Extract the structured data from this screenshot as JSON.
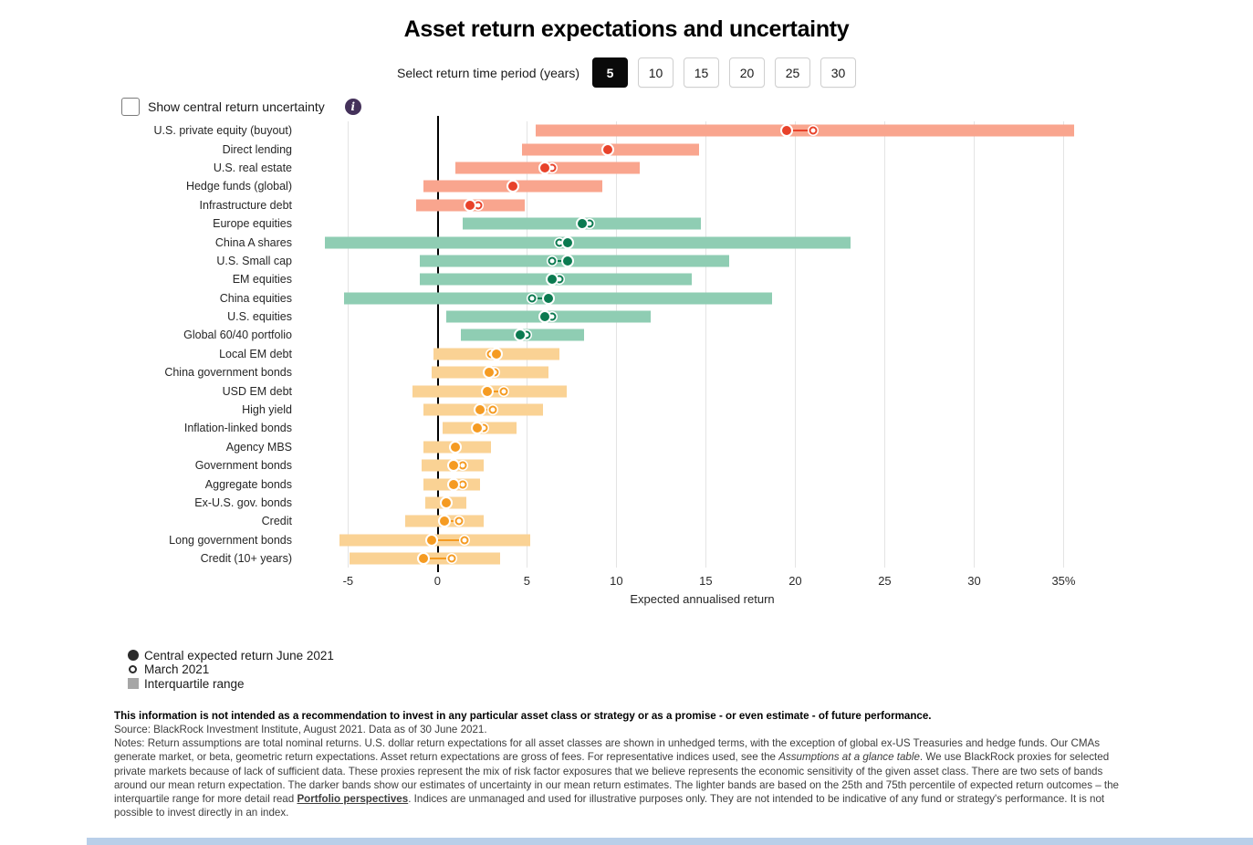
{
  "title": "Asset return expectations and uncertainty",
  "controls": {
    "time_period_label": "Select return time period (years)",
    "time_periods": [
      "5",
      "10",
      "15",
      "20",
      "25",
      "30"
    ],
    "selected_period": "5",
    "uncertainty_checkbox_label": "Show central return uncertainty",
    "uncertainty_checkbox_checked": false,
    "info_icon_color": "#44315a"
  },
  "legend": {
    "items": [
      {
        "marker": "filled-circle",
        "label": "Central expected return June 2021"
      },
      {
        "marker": "open-circle",
        "label": "March 2021"
      },
      {
        "marker": "square",
        "label": "Interquartile range"
      }
    ]
  },
  "chart_data": {
    "type": "bar",
    "orientation": "horizontal",
    "title": "Asset return expectations and uncertainty",
    "xlabel": "Expected annualised return",
    "xlim": [
      -6.6,
      36.2
    ],
    "xticks": [
      -5,
      0,
      5,
      10,
      15,
      20,
      25,
      30,
      35
    ],
    "xtick_labels": [
      "-5",
      "0",
      "5",
      "10",
      "15",
      "20",
      "25",
      "30",
      "35%"
    ],
    "grid": true,
    "legend_position": "bottom-left",
    "group_colors": {
      "alternatives": {
        "band": "#F9A58E",
        "dot": "#E8422A"
      },
      "equities": {
        "band": "#8FCDB3",
        "dot": "#0B7A50"
      },
      "fixed_income": {
        "band": "#FAD294",
        "dot": "#F59B22"
      }
    },
    "series_note": "iqr = interquartile range [25th,75th]; june = central expected return June 2021; march = March 2021 (null when hidden behind June dot)",
    "rows": [
      {
        "label": "U.S. private equity (buyout)",
        "group": "alternatives",
        "iqr": [
          5.5,
          35.6
        ],
        "june": 19.5,
        "march": 21.0
      },
      {
        "label": "Direct lending",
        "group": "alternatives",
        "iqr": [
          4.7,
          14.6
        ],
        "june": 9.5,
        "march": null
      },
      {
        "label": "U.S. real estate",
        "group": "alternatives",
        "iqr": [
          1.0,
          11.3
        ],
        "june": 6.0,
        "march": 6.4
      },
      {
        "label": "Hedge funds (global)",
        "group": "alternatives",
        "iqr": [
          -0.8,
          9.2
        ],
        "june": 4.2,
        "march": null
      },
      {
        "label": "Infrastructure debt",
        "group": "alternatives",
        "iqr": [
          -1.2,
          4.9
        ],
        "june": 1.8,
        "march": 2.3
      },
      {
        "label": "Europe equities",
        "group": "equities",
        "iqr": [
          1.4,
          14.7
        ],
        "june": 8.1,
        "march": 8.5
      },
      {
        "label": "China A shares",
        "group": "equities",
        "iqr": [
          -6.3,
          23.1
        ],
        "june": 7.3,
        "march": 6.8
      },
      {
        "label": "U.S. Small cap",
        "group": "equities",
        "iqr": [
          -1.0,
          16.3
        ],
        "june": 7.3,
        "march": 6.4
      },
      {
        "label": "EM equities",
        "group": "equities",
        "iqr": [
          -1.0,
          14.2
        ],
        "june": 6.4,
        "march": 6.8
      },
      {
        "label": "China equities",
        "group": "equities",
        "iqr": [
          -5.2,
          18.7
        ],
        "june": 6.2,
        "march": 5.3
      },
      {
        "label": "U.S. equities",
        "group": "equities",
        "iqr": [
          0.5,
          11.9
        ],
        "june": 6.0,
        "march": 6.4
      },
      {
        "label": "Global 60/40 portfolio",
        "group": "equities",
        "iqr": [
          1.3,
          8.2
        ],
        "june": 4.6,
        "march": 5.0
      },
      {
        "label": "Local EM debt",
        "group": "fixed_income",
        "iqr": [
          -0.2,
          6.8
        ],
        "june": 3.3,
        "march": 3.0
      },
      {
        "label": "China government bonds",
        "group": "fixed_income",
        "iqr": [
          -0.3,
          6.2
        ],
        "june": 2.9,
        "march": 3.2
      },
      {
        "label": "USD EM debt",
        "group": "fixed_income",
        "iqr": [
          -1.4,
          7.2
        ],
        "june": 2.8,
        "march": 3.7
      },
      {
        "label": "High yield",
        "group": "fixed_income",
        "iqr": [
          -0.8,
          5.9
        ],
        "june": 2.4,
        "march": 3.1
      },
      {
        "label": "Inflation-linked bonds",
        "group": "fixed_income",
        "iqr": [
          0.3,
          4.4
        ],
        "june": 2.2,
        "march": 2.6
      },
      {
        "label": "Agency MBS",
        "group": "fixed_income",
        "iqr": [
          -0.8,
          3.0
        ],
        "june": 1.0,
        "march": null
      },
      {
        "label": "Government bonds",
        "group": "fixed_income",
        "iqr": [
          -0.9,
          2.6
        ],
        "june": 0.9,
        "march": 1.4
      },
      {
        "label": "Aggregate bonds",
        "group": "fixed_income",
        "iqr": [
          -0.8,
          2.4
        ],
        "june": 0.9,
        "march": 1.4
      },
      {
        "label": "Ex-U.S. gov. bonds",
        "group": "fixed_income",
        "iqr": [
          -0.7,
          1.6
        ],
        "june": 0.5,
        "march": null
      },
      {
        "label": "Credit",
        "group": "fixed_income",
        "iqr": [
          -1.8,
          2.6
        ],
        "june": 0.4,
        "march": 1.2
      },
      {
        "label": "Long government bonds",
        "group": "fixed_income",
        "iqr": [
          -5.5,
          5.2
        ],
        "june": -0.3,
        "march": 1.5
      },
      {
        "label": "Credit (10+ years)",
        "group": "fixed_income",
        "iqr": [
          -4.9,
          3.5
        ],
        "june": -0.8,
        "march": 0.8
      }
    ]
  },
  "footer": {
    "disclaimer_bold": "This information is not intended as a recommendation to invest in any particular asset class or strategy or as a promise - or even estimate - of future performance.",
    "source": "Source: BlackRock Investment Institute, August 2021. Data as of 30 June 2021.",
    "notes_part1": "Notes: Return assumptions are total nominal returns. U.S. dollar return expectations for all asset classes are shown in unhedged terms, with the exception of global ex-US Treasuries and hedge funds. Our CMAs generate market, or beta, geometric return expectations. Asset return expectations are gross of fees. For representative indices used, see the ",
    "notes_italic": "Assumptions at a glance table",
    "notes_part2": ". We use BlackRock proxies for selected private markets because of lack of sufficient data. These proxies represent the mix of risk factor exposures that we believe represents the economic sensitivity of the given asset class. There are two sets of bands around our mean return expectation. The darker bands show our estimates of uncertainty in our mean return estimates. The lighter bands are based on the 25th and 75th percentile of expected return outcomes – the interquartile range for more detail read ",
    "notes_link": "Portfolio perspectives",
    "notes_part3": ". Indices are unmanaged and used for illustrative purposes only. They are not intended to be indicative of any fund or strategy's performance. It is not possible to invest directly in an index."
  }
}
